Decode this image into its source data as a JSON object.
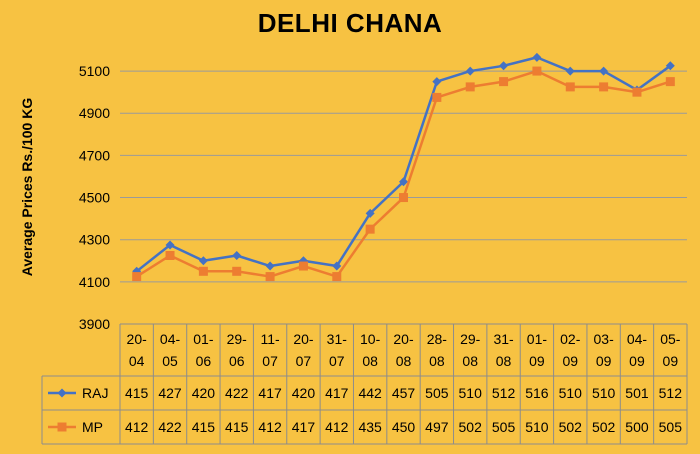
{
  "chart_data": {
    "type": "line",
    "title": "DELHI CHANA",
    "ylabel": "Average Prices Rs./100 KG",
    "xlabel": "",
    "ylim": [
      3900,
      5200
    ],
    "yticks": [
      "3900",
      "4100",
      "4300",
      "4500",
      "4700",
      "4900",
      "5100"
    ],
    "grid": true,
    "legend": "data-table",
    "categories": [
      [
        "20-",
        "04"
      ],
      [
        "04-",
        "05"
      ],
      [
        "01-",
        "06"
      ],
      [
        "29-",
        "06"
      ],
      [
        "11-",
        "07"
      ],
      [
        "20-",
        "07"
      ],
      [
        "31-",
        "07"
      ],
      [
        "10-",
        "08"
      ],
      [
        "20-",
        "08"
      ],
      [
        "28-",
        "08"
      ],
      [
        "29-",
        "08"
      ],
      [
        "31-",
        "08"
      ],
      [
        "01-",
        "09"
      ],
      [
        "02-",
        "09"
      ],
      [
        "03-",
        "09"
      ],
      [
        "04-",
        "09"
      ],
      [
        "05-",
        "09"
      ]
    ],
    "series": [
      {
        "name": "RAJ",
        "color": "#4472C4",
        "marker": "diamond",
        "values": [
          4150,
          4275,
          4200,
          4225,
          4175,
          4200,
          4175,
          4425,
          4575,
          5050,
          5100,
          5125,
          5165,
          5100,
          5100,
          5010,
          5125
        ],
        "table_labels": [
          "415",
          "427",
          "420",
          "422",
          "417",
          "420",
          "417",
          "442",
          "457",
          "505",
          "510",
          "512",
          "516",
          "510",
          "510",
          "501",
          "512"
        ]
      },
      {
        "name": "MP",
        "color": "#ED7D31",
        "marker": "square",
        "values": [
          4125,
          4225,
          4150,
          4150,
          4125,
          4175,
          4125,
          4350,
          4500,
          4975,
          5025,
          5050,
          5100,
          5025,
          5025,
          5000,
          5050
        ],
        "table_labels": [
          "412",
          "422",
          "415",
          "415",
          "412",
          "417",
          "412",
          "435",
          "450",
          "497",
          "502",
          "505",
          "510",
          "502",
          "502",
          "500",
          "505"
        ]
      }
    ]
  }
}
